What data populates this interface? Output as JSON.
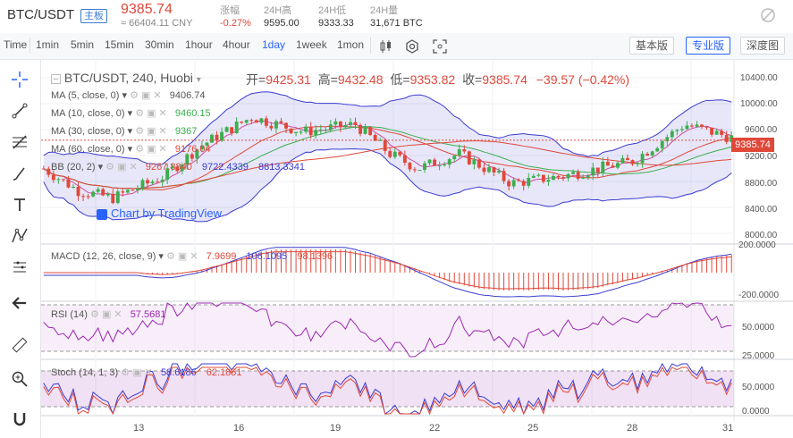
{
  "ticker": {
    "pair": "BTC/USDT",
    "tag": "主板",
    "price": "9385.74",
    "cny": "≈ 66404.11 CNY",
    "stats": [
      {
        "label": "涨幅",
        "value": "-0.27%",
        "color": "#e0483a"
      },
      {
        "label": "24H高",
        "value": "9595.00",
        "color": "#333333"
      },
      {
        "label": "24H低",
        "value": "9333.33",
        "color": "#333333"
      },
      {
        "label": "24H量",
        "value": "31,671 BTC",
        "color": "#333333"
      }
    ]
  },
  "toolbar": {
    "timeframes": [
      "Time",
      "1min",
      "5min",
      "15min",
      "30min",
      "1hour",
      "4hour",
      "1day",
      "1week",
      "1mon"
    ],
    "active_timeframe": "1day",
    "views": [
      "基本版",
      "专业版",
      "深度图"
    ],
    "active_view": "专业版"
  },
  "sidebar": {
    "tools": [
      "crosshair-icon",
      "trendline-icon",
      "fib-icon",
      "brush-icon",
      "text-icon",
      "pattern-icon",
      "ruler-icon",
      "arrow-left-icon",
      "measure-icon",
      "zoom-icon",
      "magnet-icon"
    ]
  },
  "main": {
    "title": "BTC/USDT, 240, Huobi",
    "ohlc": {
      "open_label": "开=",
      "open": "9425.31",
      "high_label": "高=",
      "high": "9432.48",
      "low_label": "低=",
      "low": "9353.82",
      "close_label": "收=",
      "close": "9385.74",
      "change": "−39.57 (−0.42%)"
    },
    "studies": [
      {
        "label": "MA (5, close, 0)",
        "value": "9406.74"
      },
      {
        "label": "MA (10, close, 0)",
        "value": "9460.15"
      },
      {
        "label": "MA (30, close, 0)",
        "value": "9367"
      },
      {
        "label": "MA (60, close, 0)",
        "value": "9176.04"
      },
      {
        "label": "BB (20, 2)",
        "value": "9267.8840",
        "value2": "9722.4339",
        "value3": "8813.3341"
      }
    ],
    "watermark": "Chart by TradingView",
    "price_badge": "9385.74",
    "yaxis": [
      "10400.00",
      "10000.00",
      "9600.00",
      "9200.00",
      "8800.00",
      "8400.00",
      "8000.00"
    ]
  },
  "macd": {
    "label": "MACD (12, 26, close, 9)",
    "v1": "7.9699",
    "v2": "106.1095",
    "v3": "98.1396",
    "yaxis": [
      "200.0000",
      "-200.0000"
    ]
  },
  "rsi": {
    "label": "RSI (14)",
    "value": "57.5681",
    "yaxis": [
      "50.0000",
      "25.0000"
    ]
  },
  "stoch": {
    "label": "Stoch (14, 1, 3)",
    "v1": "58.6186",
    "v2": "62.1851",
    "yaxis": [
      "50.0000",
      "0.0000"
    ]
  },
  "xaxis": [
    "13",
    "16",
    "19",
    "22",
    "25",
    "28",
    "31"
  ],
  "colors": {
    "up": "#3cae4e",
    "down": "#e0483a",
    "accent": "#2962ff",
    "band": "#3b3bd1",
    "ma_short": "#d14f9a"
  }
}
